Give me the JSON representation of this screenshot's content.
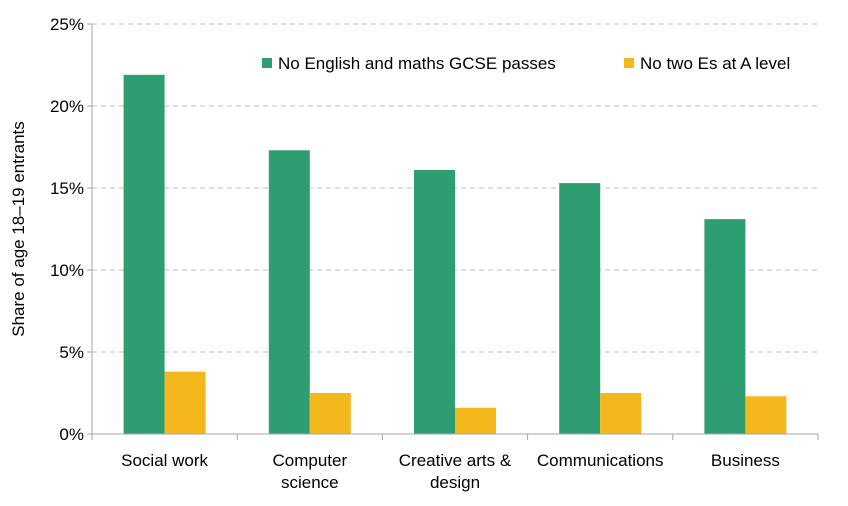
{
  "chart_data": {
    "type": "bar",
    "title": "",
    "xlabel": "",
    "ylabel": "Share of age 18–19 entrants",
    "ylim": [
      0,
      25
    ],
    "yticks": [
      0,
      5,
      10,
      15,
      20,
      25
    ],
    "ytick_labels": [
      "0%",
      "5%",
      "10%",
      "15%",
      "20%",
      "25%"
    ],
    "grid": true,
    "legend_position": "top-right",
    "categories": [
      [
        "Social work"
      ],
      [
        "Computer",
        "science"
      ],
      [
        "Creative arts &",
        "design"
      ],
      [
        "Communications"
      ],
      [
        "Business"
      ]
    ],
    "series": [
      {
        "name": "No English and maths GCSE passes",
        "color": "#2e9e72",
        "values": [
          21.9,
          17.3,
          16.1,
          15.3,
          13.1
        ]
      },
      {
        "name": "No two Es at A level",
        "color": "#f2b81c",
        "values": [
          3.8,
          2.5,
          1.6,
          2.5,
          2.3
        ]
      }
    ]
  }
}
